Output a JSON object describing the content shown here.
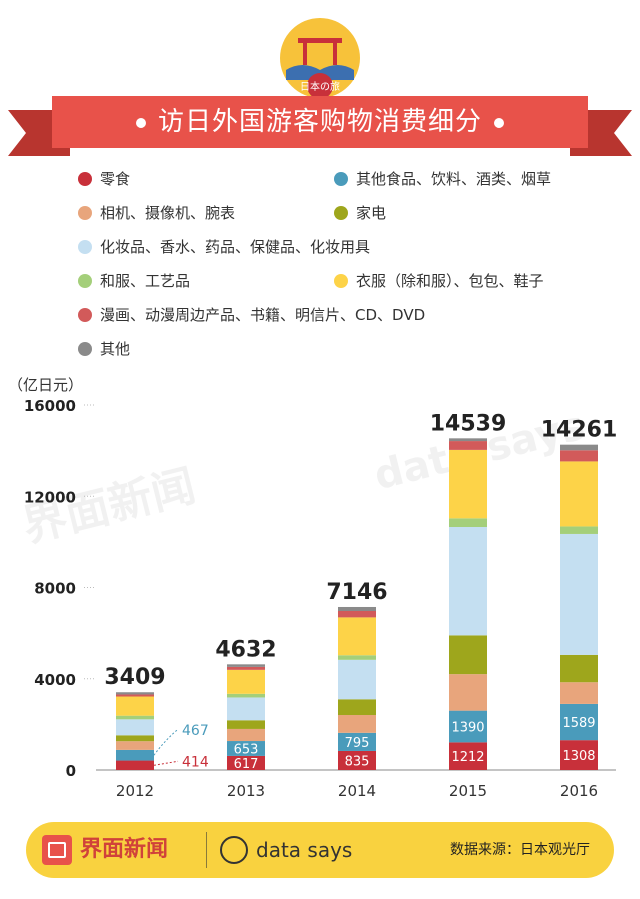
{
  "header": {
    "badge_text": "日本の旅",
    "title": "访日外国游客购物消费细分"
  },
  "colors": {
    "ribbon": "#e8524a",
    "footer": "#f9d23f"
  },
  "watermarks": {
    "left": "界面新闻",
    "right": "data says"
  },
  "chart_data": {
    "type": "bar",
    "stacked": true,
    "categories": [
      "2012",
      "2013",
      "2014",
      "2015",
      "2016"
    ],
    "unit_label": "（亿日元）",
    "ylim": [
      0,
      16000
    ],
    "yticks": [
      "0",
      "4000",
      "8000",
      "12000",
      "16000"
    ],
    "ytick_values": [
      0,
      4000,
      8000,
      12000,
      16000
    ],
    "grid": "dotted-ticks-left",
    "legend_position": "top",
    "totals": [
      3409,
      4632,
      7146,
      14539,
      14261
    ],
    "total_labels": [
      "3409",
      "4632",
      "7146",
      "14539",
      "14261"
    ],
    "series": [
      {
        "name": "零食",
        "color": "#c8303a",
        "values": [
          414,
          617,
          835,
          1212,
          1308
        ],
        "labels": [
          "414",
          "617",
          "835",
          "1212",
          "1308"
        ]
      },
      {
        "name": "其他食品、饮料、酒类、烟草",
        "color": "#4a9bbb",
        "values": [
          467,
          653,
          795,
          1390,
          1589
        ],
        "labels": [
          "467",
          "653",
          "795",
          "1390",
          "1589"
        ]
      },
      {
        "name": "相机、摄像机、腕表",
        "color": "#e8a57c",
        "values": [
          380,
          530,
          780,
          1600,
          950
        ]
      },
      {
        "name": "家电",
        "color": "#9ea61c",
        "values": [
          260,
          380,
          690,
          1700,
          1200
        ]
      },
      {
        "name": "化妆品、香水、药品、保健品、化妆用具",
        "color": "#c4dff1",
        "values": [
          700,
          1000,
          1730,
          4750,
          5300
        ]
      },
      {
        "name": "和服、工艺品",
        "color": "#a4cf7a",
        "values": [
          160,
          160,
          200,
          380,
          330
        ]
      },
      {
        "name": "衣服（除和服）、包包、鞋子",
        "color": "#fdd348",
        "values": [
          840,
          1050,
          1660,
          3000,
          2850
        ]
      },
      {
        "name": "漫画、动漫周边产品、书籍、明信片、CD、DVD",
        "color": "#d25a5a",
        "values": [
          90,
          130,
          280,
          387,
          489
        ]
      },
      {
        "name": "其他",
        "color": "#8a8a8a",
        "values": [
          98,
          112,
          176,
          120,
          245
        ]
      }
    ]
  },
  "footer": {
    "brand": "界面新闻",
    "data_says": "data says",
    "source": "数据来源：日本观光厅"
  }
}
